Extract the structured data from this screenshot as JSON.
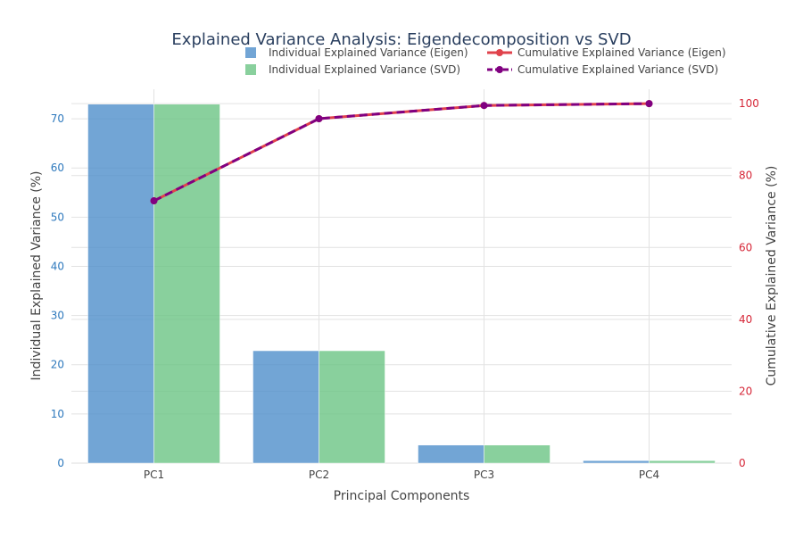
{
  "chart_data": {
    "type": "bar",
    "title": "Explained Variance Analysis: Eigendecomposition vs SVD",
    "xlabel": "Principal Components",
    "ylabel": "Individual Explained Variance (%)",
    "y2label": "Cumulative Explained Variance (%)",
    "categories": [
      "PC1",
      "PC2",
      "PC3",
      "PC4"
    ],
    "ylim": [
      0,
      76
    ],
    "y2lim": [
      0,
      104
    ],
    "yticks": [
      0,
      10,
      20,
      30,
      40,
      50,
      60,
      70
    ],
    "y2ticks": [
      0,
      20,
      40,
      60,
      80,
      100
    ],
    "grid": true,
    "legend_position": "top-right",
    "bar_series": [
      {
        "name": "Individual Explained Variance (Eigen)",
        "values": [
          72.96,
          22.85,
          3.67,
          0.52
        ],
        "color": "#4f8fcb"
      },
      {
        "name": "Individual Explained Variance (SVD)",
        "values": [
          72.96,
          22.85,
          3.67,
          0.52
        ],
        "color": "#6cc485"
      }
    ],
    "line_series": [
      {
        "name": "Cumulative Explained Variance (Eigen)",
        "values": [
          72.96,
          95.81,
          99.48,
          100.0
        ],
        "color": "#e0424b",
        "dash": "solid"
      },
      {
        "name": "Cumulative Explained Variance (SVD)",
        "values": [
          72.96,
          95.81,
          99.48,
          100.0
        ],
        "color": "#800080",
        "dash": "dash"
      }
    ],
    "colors": {
      "left_axis": "#2e79bd",
      "right_axis": "#d62738",
      "title": "#2a3f5f",
      "grid": "#e2e2e2"
    }
  }
}
